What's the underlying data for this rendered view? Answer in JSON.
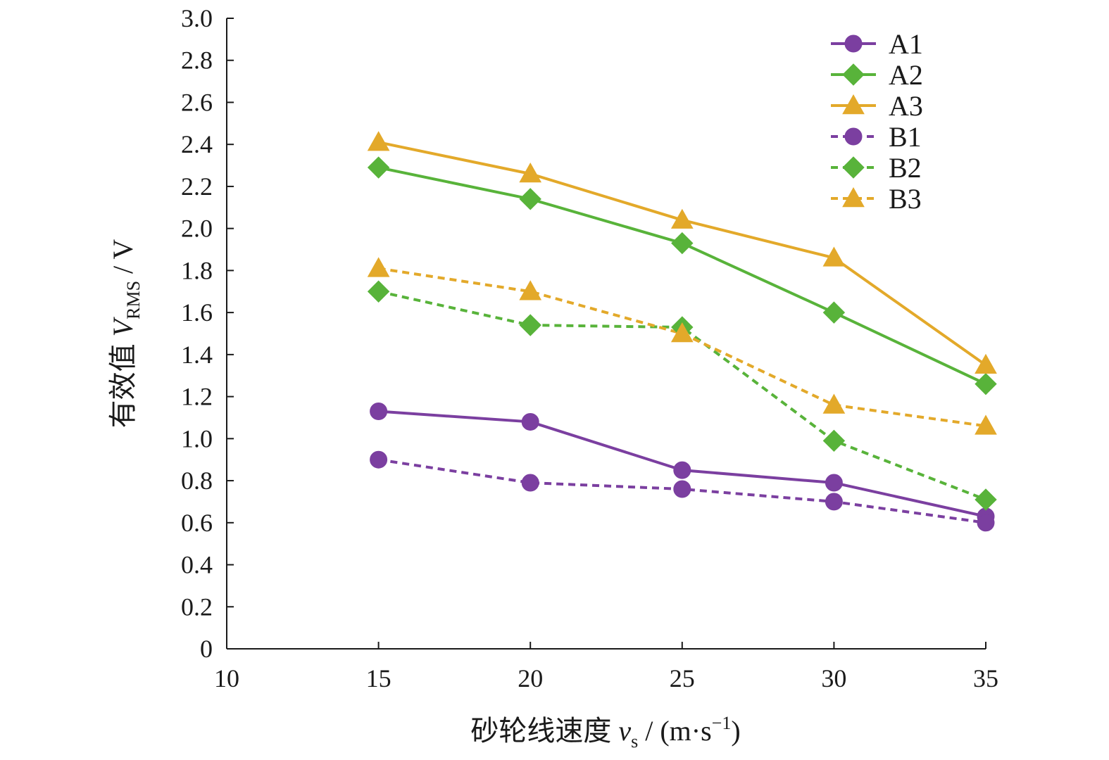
{
  "chart_data": {
    "type": "line",
    "title": "",
    "xlabel": {
      "prefix": "砂轮线速度 ",
      "var": "v",
      "sub": "s",
      "suffix": " / (m·s",
      "sup": "−1",
      "close": ")"
    },
    "ylabel": {
      "prefix": "有效值 ",
      "var": "V",
      "sub": "RMS",
      "suffix": " / V"
    },
    "xlim": [
      10,
      35
    ],
    "ylim": [
      0,
      3.0
    ],
    "x_ticks": [
      10,
      15,
      20,
      25,
      30,
      35
    ],
    "x_tick_labels": [
      "10",
      "15",
      "20",
      "25",
      "30",
      "35"
    ],
    "y_ticks": [
      0,
      0.2,
      0.4,
      0.6,
      0.8,
      1.0,
      1.2,
      1.4,
      1.6,
      1.8,
      2.0,
      2.2,
      2.4,
      2.6,
      2.8,
      3.0
    ],
    "y_tick_labels": [
      "0",
      "0.2",
      "0.4",
      "0.6",
      "0.8",
      "1.0",
      "1.2",
      "1.4",
      "1.6",
      "1.8",
      "2.0",
      "2.2",
      "2.4",
      "2.6",
      "2.8",
      "3.0"
    ],
    "grid": false,
    "legend_position": "top-right",
    "x": [
      15,
      20,
      25,
      30,
      35
    ],
    "series": [
      {
        "name": "A1",
        "values": [
          1.13,
          1.08,
          0.85,
          0.79,
          0.63
        ],
        "color": "#7b3fa0",
        "marker": "circle",
        "dashed": false
      },
      {
        "name": "A2",
        "values": [
          2.29,
          2.14,
          1.93,
          1.6,
          1.26
        ],
        "color": "#58b33a",
        "marker": "diamond",
        "dashed": false
      },
      {
        "name": "A3",
        "values": [
          2.41,
          2.26,
          2.04,
          1.86,
          1.35
        ],
        "color": "#e3a92a",
        "marker": "triangle",
        "dashed": false
      },
      {
        "name": "B1",
        "values": [
          0.9,
          0.79,
          0.76,
          0.7,
          0.6
        ],
        "color": "#7b3fa0",
        "marker": "circle",
        "dashed": true
      },
      {
        "name": "B2",
        "values": [
          1.7,
          1.54,
          1.53,
          0.99,
          0.71
        ],
        "color": "#58b33a",
        "marker": "diamond",
        "dashed": true
      },
      {
        "name": "B3",
        "values": [
          1.81,
          1.7,
          1.5,
          1.16,
          1.06
        ],
        "color": "#e3a92a",
        "marker": "triangle",
        "dashed": true
      }
    ]
  }
}
